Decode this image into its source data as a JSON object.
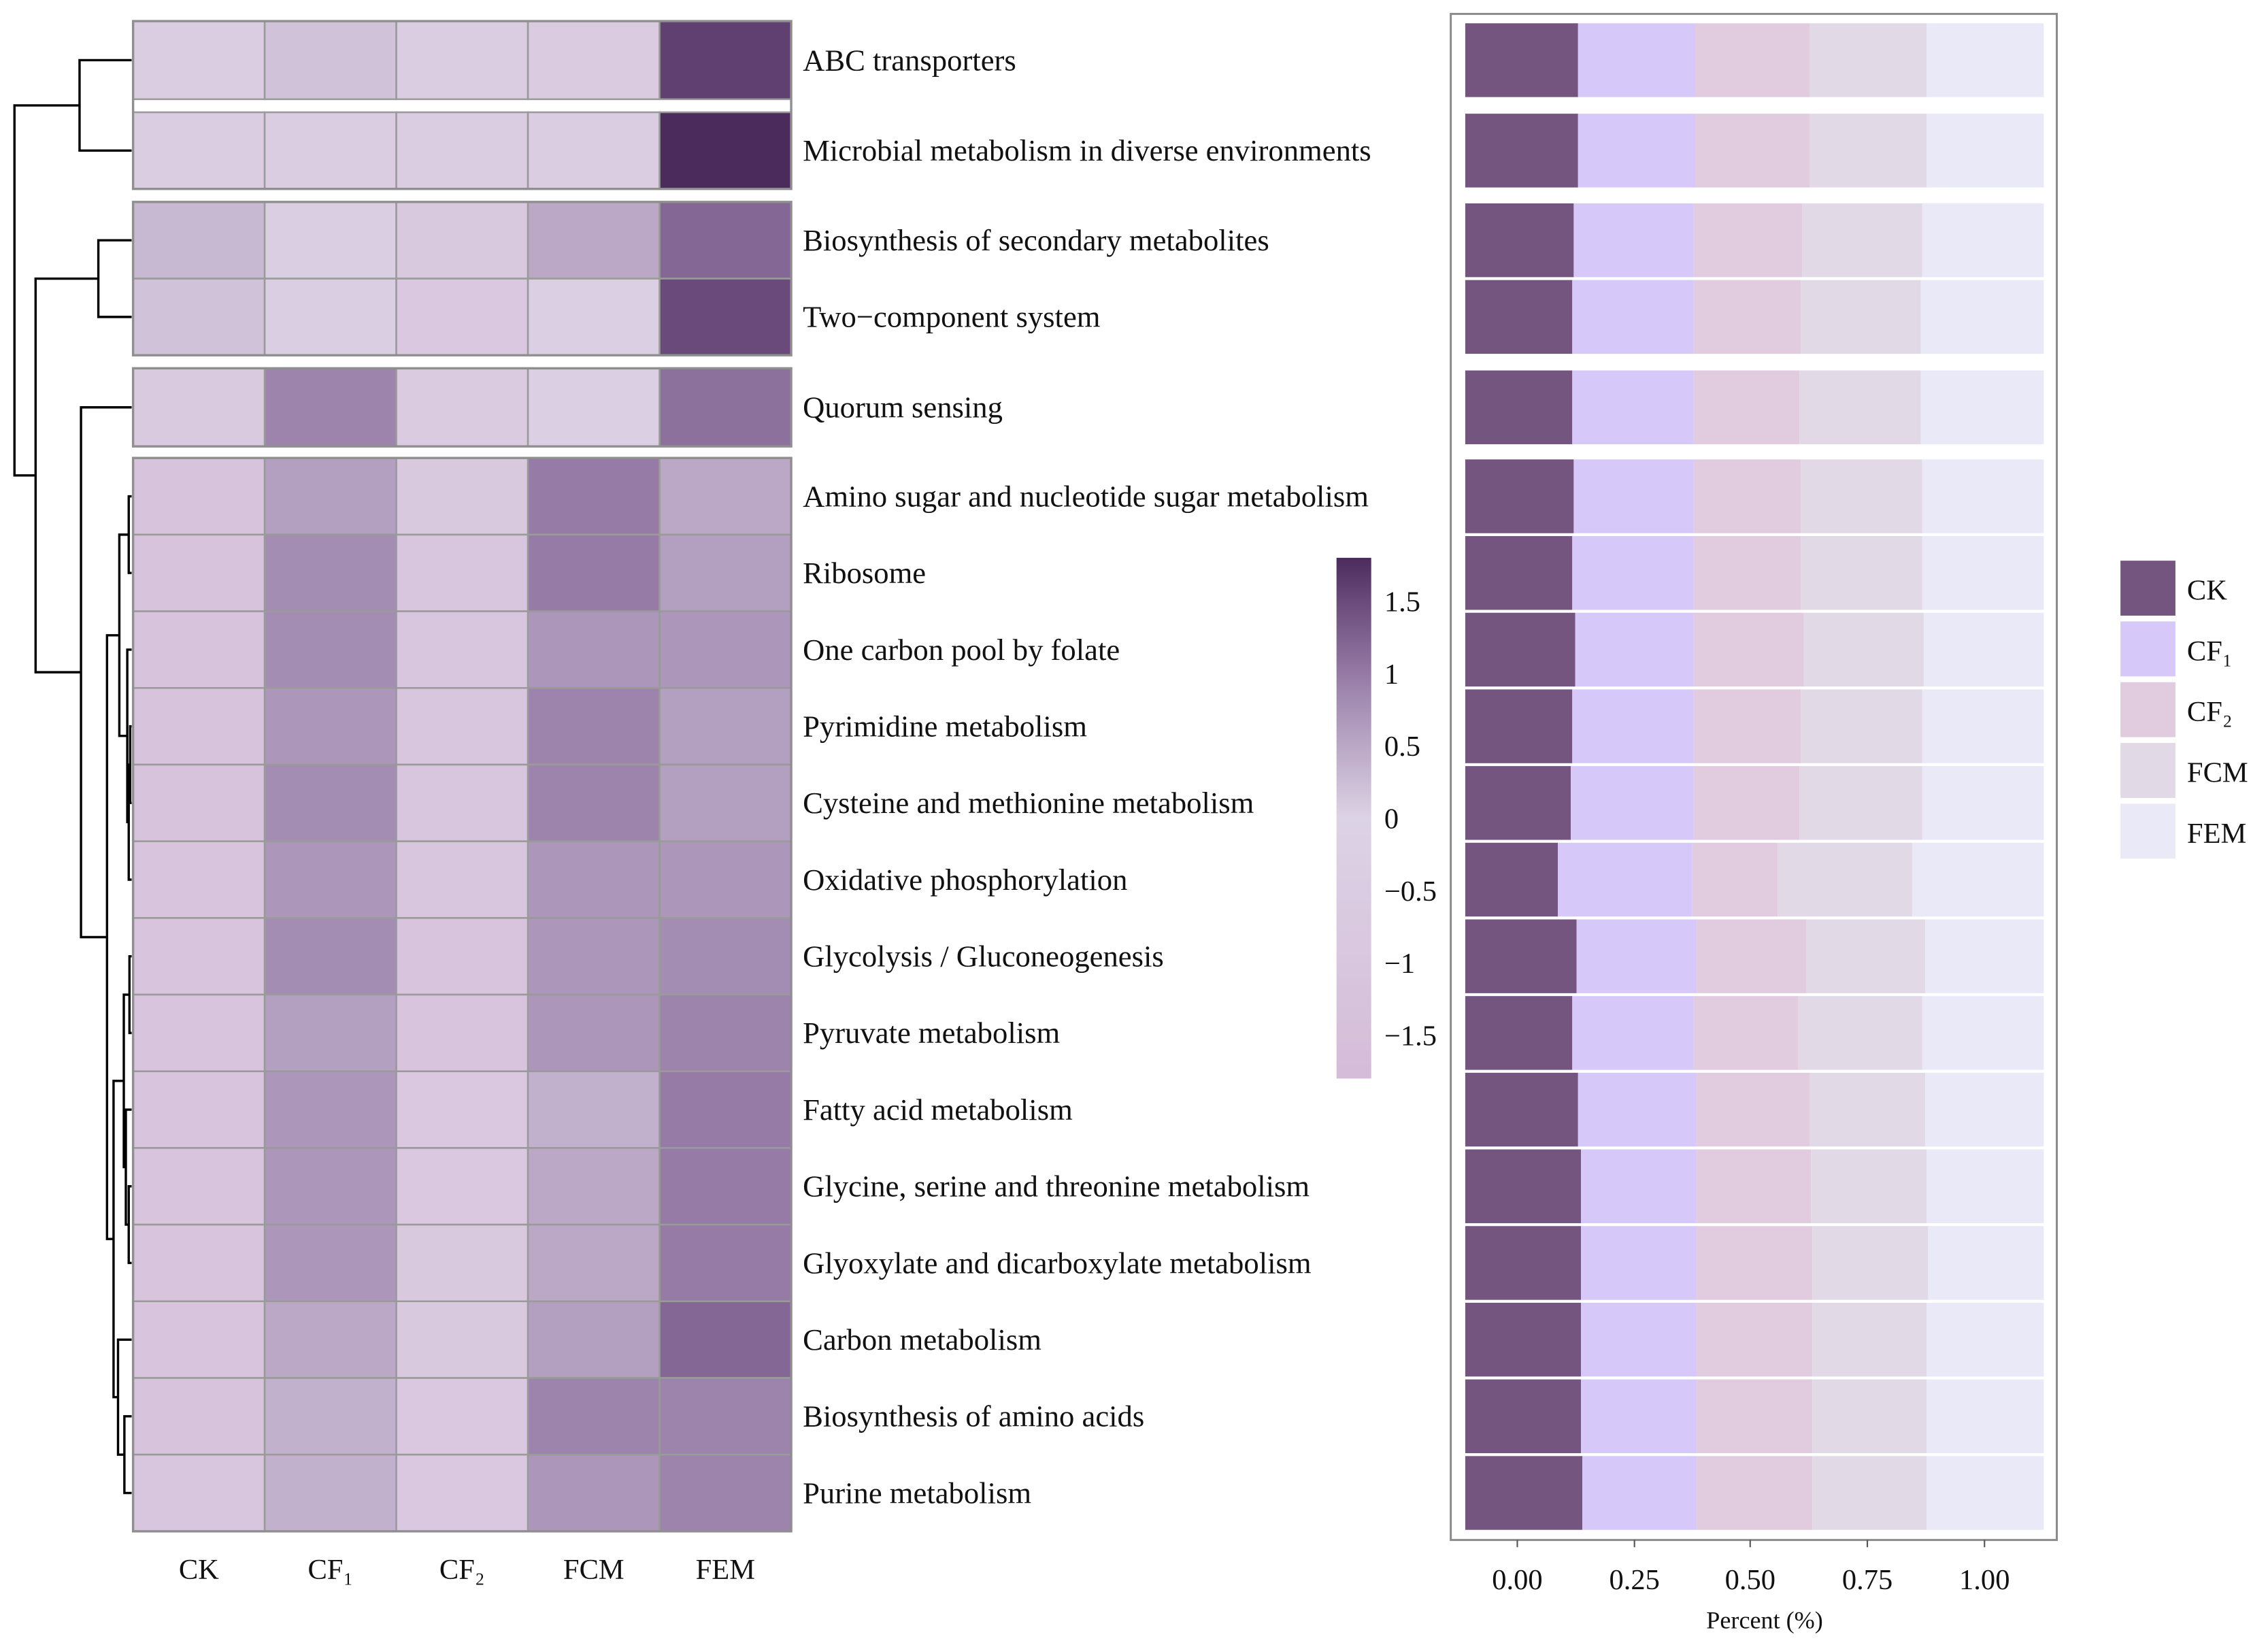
{
  "chart_data": [
    {
      "type": "heatmap",
      "title": "",
      "columns": [
        "CK",
        "CF₁",
        "CF₂",
        "FCM",
        "FEM"
      ],
      "rows": [
        "ABC transporters",
        "Microbial metabolism in diverse environments",
        "Biosynthesis of secondary metabolites",
        "Two−component system",
        "Quorum sensing",
        "Amino sugar and nucleotide sugar metabolism",
        "Ribosome",
        "One carbon pool by folate",
        "Pyrimidine metabolism",
        "Cysteine and methionine metabolism",
        "Oxidative phosphorylation",
        "Glycolysis / Gluconeogenesis",
        "Pyruvate metabolism",
        "Fatty acid metabolism",
        "Glycine, serine and threonine metabolism",
        "Glyoxylate and dicarboxylate metabolism",
        "Carbon metabolism",
        "Biosynthesis of amino acids",
        "Purine metabolism"
      ],
      "row_groups": [
        [
          0,
          1
        ],
        [
          2,
          3
        ],
        [
          4
        ],
        [
          5,
          6,
          7,
          8,
          9,
          10,
          11,
          12,
          13,
          14,
          15,
          16,
          17,
          18
        ]
      ],
      "values": [
        [
          -0.45,
          0.2,
          -0.45,
          -0.6,
          1.6
        ],
        [
          -0.45,
          -0.45,
          -0.45,
          -0.45,
          1.8
        ],
        [
          0.3,
          -0.4,
          -0.8,
          0.5,
          1.2
        ],
        [
          0.2,
          -0.4,
          -0.9,
          -0.3,
          1.5
        ],
        [
          -0.7,
          0.9,
          -0.6,
          -0.3,
          1.1
        ],
        [
          -1.2,
          0.6,
          -0.8,
          1.0,
          0.5
        ],
        [
          -1.2,
          0.8,
          -1.0,
          1.0,
          0.6
        ],
        [
          -1.2,
          0.8,
          -1.0,
          0.7,
          0.7
        ],
        [
          -1.2,
          0.7,
          -1.0,
          0.9,
          0.6
        ],
        [
          -1.2,
          0.8,
          -1.0,
          0.9,
          0.6
        ],
        [
          -1.1,
          0.7,
          -1.0,
          0.7,
          0.7
        ],
        [
          -1.1,
          0.8,
          -1.1,
          0.7,
          0.8
        ],
        [
          -1.1,
          0.6,
          -1.1,
          0.7,
          0.9
        ],
        [
          -1.1,
          0.7,
          -0.9,
          0.4,
          1.0
        ],
        [
          -1.1,
          0.7,
          -0.9,
          0.5,
          1.0
        ],
        [
          -1.1,
          0.7,
          -0.8,
          0.5,
          1.0
        ],
        [
          -1.1,
          0.5,
          -0.8,
          0.6,
          1.2
        ],
        [
          -1.2,
          0.4,
          -0.9,
          0.9,
          0.9
        ],
        [
          -1.0,
          0.4,
          -0.9,
          0.7,
          0.9
        ]
      ],
      "colorbar": {
        "range": [
          -1.8,
          1.8
        ],
        "ticks": [
          "1.5",
          "1",
          "0.5",
          "0",
          "−0.5",
          "−1",
          "−1.5"
        ],
        "tick_values": [
          1.5,
          1,
          0.5,
          0,
          -0.5,
          -1,
          -1.5
        ]
      },
      "colors": {
        "low": "#d5bcd8",
        "mid": "#dcd3e5",
        "high": "#4b2b5c"
      }
    },
    {
      "type": "bar",
      "stacked": true,
      "orientation": "horizontal",
      "xlabel": "Percent (%)",
      "xticks": [
        "0.00",
        "0.25",
        "0.50",
        "0.75",
        "1.00"
      ],
      "legend": {
        "placement": "right",
        "entries": [
          "CK",
          "CF₁",
          "CF₂",
          "FCM",
          "FEM"
        ]
      },
      "colors": [
        "#745580",
        "#d6c9fa",
        "#e1cbdf",
        "#e2d9e7",
        "#eae9f8"
      ],
      "series_values": [
        [
          0.195,
          0.2025,
          0.1975,
          0.2025,
          0.2025
        ],
        [
          0.195,
          0.2025,
          0.1975,
          0.2025,
          0.2025
        ],
        [
          0.1875,
          0.2075,
          0.1875,
          0.2075,
          0.21
        ],
        [
          0.185,
          0.21,
          0.185,
          0.2075,
          0.2125
        ],
        [
          0.185,
          0.21,
          0.1825,
          0.21,
          0.2125
        ],
        [
          0.1875,
          0.2075,
          0.185,
          0.21,
          0.21
        ],
        [
          0.185,
          0.21,
          0.185,
          0.21,
          0.21
        ],
        [
          0.19,
          0.205,
          0.19,
          0.2075,
          0.2075
        ],
        [
          0.185,
          0.21,
          0.185,
          0.21,
          0.21
        ],
        [
          0.1825,
          0.2125,
          0.1825,
          0.2125,
          0.21
        ],
        [
          0.16,
          0.2325,
          0.1475,
          0.2325,
          0.2275
        ],
        [
          0.1925,
          0.2075,
          0.19,
          0.205,
          0.205
        ],
        [
          0.185,
          0.21,
          0.18,
          0.215,
          0.21
        ],
        [
          0.195,
          0.205,
          0.195,
          0.2,
          0.205
        ],
        [
          0.2,
          0.2,
          0.1975,
          0.2,
          0.2025
        ],
        [
          0.2,
          0.2,
          0.2,
          0.2,
          0.2
        ],
        [
          0.2,
          0.2,
          0.2,
          0.1975,
          0.2025
        ],
        [
          0.2,
          0.2,
          0.2,
          0.1975,
          0.2025
        ],
        [
          0.2025,
          0.1975,
          0.2,
          0.1975,
          0.2025
        ]
      ]
    }
  ]
}
